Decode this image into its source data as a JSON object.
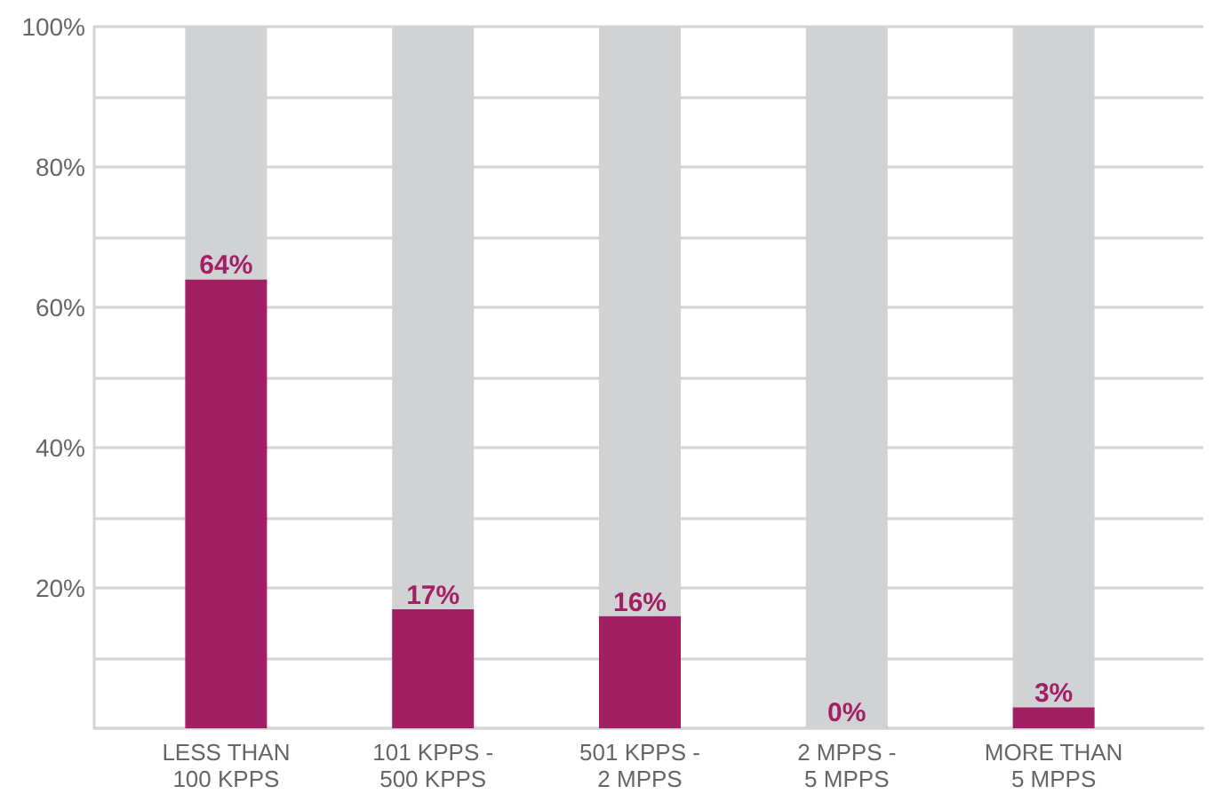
{
  "chart_data": {
    "type": "bar",
    "stacked": true,
    "categories": [
      "LESS THAN\n100 KPPS",
      "101 KPPS -\n500 KPPS",
      "501 KPPS -\n2 MPPS",
      "2 MPPS -\n5 MPPS",
      "MORE THAN\n5 MPPS"
    ],
    "series": [
      {
        "color": "#a21f64",
        "values": [
          64,
          17,
          16,
          0,
          3
        ],
        "value_labels": [
          "64%",
          "17%",
          "16%",
          "0%",
          "3%"
        ]
      },
      {
        "color": "#d1d2d4",
        "values": [
          36,
          83,
          84,
          100,
          97
        ]
      }
    ],
    "ylim": [
      0,
      100
    ],
    "yticks": [
      {
        "value": 0,
        "label": null
      },
      {
        "value": 10,
        "label": null
      },
      {
        "value": 20,
        "label": "20%"
      },
      {
        "value": 30,
        "label": null
      },
      {
        "value": 40,
        "label": "40%"
      },
      {
        "value": 50,
        "label": null
      },
      {
        "value": 60,
        "label": "60%"
      },
      {
        "value": 70,
        "label": null
      },
      {
        "value": 80,
        "label": "80%"
      },
      {
        "value": 90,
        "label": null
      },
      {
        "value": 100,
        "label": "100%"
      }
    ],
    "grid": "y"
  }
}
